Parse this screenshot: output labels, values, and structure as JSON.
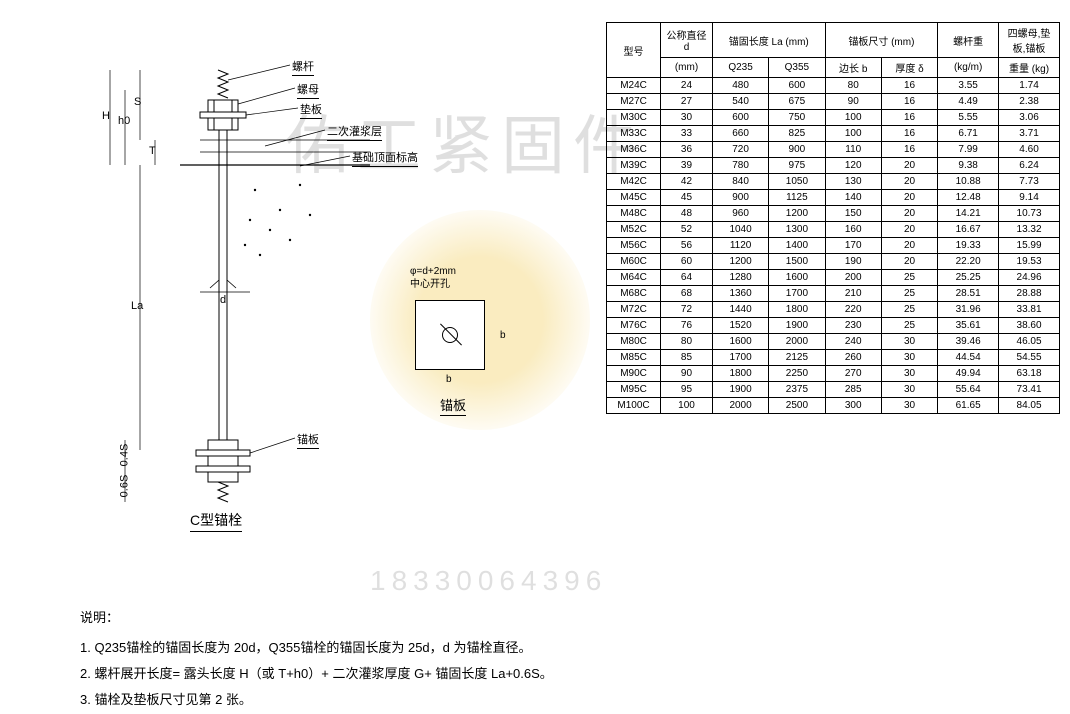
{
  "watermark": {
    "text1": "佑工紧固件",
    "text2": "18330064396"
  },
  "diagram": {
    "type": "engineering-drawing",
    "title": "C型锚栓",
    "plate_title": "锚板",
    "plate_label_line1": "φ=d+2mm",
    "plate_label_line2": "中心开孔",
    "plate_dim_h": "b",
    "plate_dim_v": "b",
    "callouts": {
      "bolt": "螺杆",
      "nut": "螺母",
      "washer": "垫板",
      "grout": "二次灌浆层",
      "foundation": "基础顶面标高",
      "anchor_plate": "锚板"
    },
    "dims": {
      "H": "H",
      "h0": "h0",
      "S": "S",
      "T": "T",
      "d": "d",
      "La": "La",
      "s06": "0.6S",
      "s04": "0.4S"
    }
  },
  "table": {
    "type": "table",
    "header": {
      "model": "型号",
      "diameter": "公称直径 d",
      "diameter_unit": "(mm)",
      "la": "锚固长度 La (mm)",
      "la_q235": "Q235",
      "la_q355": "Q355",
      "plate": "锚板尺寸 (mm)",
      "plate_b": "边长 b",
      "plate_delta": "厚度 δ",
      "bolt_wt": "螺杆重",
      "bolt_wt_unit": "(kg/m)",
      "set_wt": "四螺母,垫板,锚板",
      "set_wt_unit": "重量 (kg)"
    },
    "rows": [
      [
        "M24C",
        24,
        480,
        600,
        80,
        16,
        "3.55",
        "1.74"
      ],
      [
        "M27C",
        27,
        540,
        675,
        90,
        16,
        "4.49",
        "2.38"
      ],
      [
        "M30C",
        30,
        600,
        750,
        100,
        16,
        "5.55",
        "3.06"
      ],
      [
        "M33C",
        33,
        660,
        825,
        100,
        16,
        "6.71",
        "3.71"
      ],
      [
        "M36C",
        36,
        720,
        900,
        110,
        16,
        "7.99",
        "4.60"
      ],
      [
        "M39C",
        39,
        780,
        975,
        120,
        20,
        "9.38",
        "6.24"
      ],
      [
        "M42C",
        42,
        840,
        1050,
        130,
        20,
        "10.88",
        "7.73"
      ],
      [
        "M45C",
        45,
        900,
        1125,
        140,
        20,
        "12.48",
        "9.14"
      ],
      [
        "M48C",
        48,
        960,
        1200,
        150,
        20,
        "14.21",
        "10.73"
      ],
      [
        "M52C",
        52,
        1040,
        1300,
        160,
        20,
        "16.67",
        "13.32"
      ],
      [
        "M56C",
        56,
        1120,
        1400,
        170,
        20,
        "19.33",
        "15.99"
      ],
      [
        "M60C",
        60,
        1200,
        1500,
        190,
        20,
        "22.20",
        "19.53"
      ],
      [
        "M64C",
        64,
        1280,
        1600,
        200,
        25,
        "25.25",
        "24.96"
      ],
      [
        "M68C",
        68,
        1360,
        1700,
        210,
        25,
        "28.51",
        "28.88"
      ],
      [
        "M72C",
        72,
        1440,
        1800,
        220,
        25,
        "31.96",
        "33.81"
      ],
      [
        "M76C",
        76,
        1520,
        1900,
        230,
        25,
        "35.61",
        "38.60"
      ],
      [
        "M80C",
        80,
        1600,
        2000,
        240,
        30,
        "39.46",
        "46.05"
      ],
      [
        "M85C",
        85,
        1700,
        2125,
        260,
        30,
        "44.54",
        "54.55"
      ],
      [
        "M90C",
        90,
        1800,
        2250,
        270,
        30,
        "49.94",
        "63.18"
      ],
      [
        "M95C",
        95,
        1900,
        2375,
        285,
        30,
        "55.64",
        "73.41"
      ],
      [
        "M100C",
        100,
        2000,
        2500,
        300,
        30,
        "61.65",
        "84.05"
      ]
    ],
    "border_color": "#000000",
    "text_color": "#000000",
    "fontsize": 10
  },
  "notes": {
    "title": "说明：",
    "items": [
      "1. Q235锚栓的锚固长度为 20d，Q355锚栓的锚固长度为 25d，d 为锚栓直径。",
      "2. 螺杆展开长度= 露头长度 H（或 T+h0）+ 二次灌浆厚度 G+ 锚固长度 La+0.6S。",
      "3. 锚栓及垫板尺寸见第 2 张。"
    ]
  }
}
